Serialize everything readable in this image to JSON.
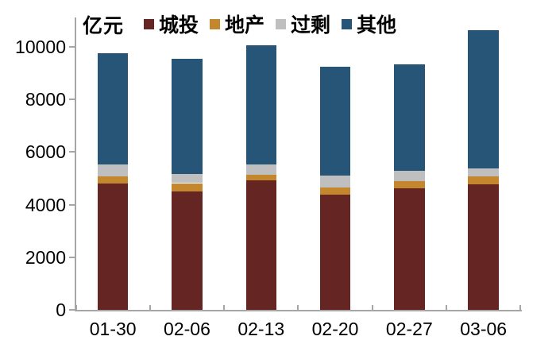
{
  "chart_data": {
    "type": "bar",
    "stacked": true,
    "unit_label": "亿元",
    "categories": [
      "01-30",
      "02-06",
      "02-13",
      "02-20",
      "02-27",
      "03-06"
    ],
    "series": [
      {
        "key": "chengtou",
        "name": "城投",
        "color": "#642523",
        "values": [
          4800,
          4510,
          4920,
          4380,
          4610,
          4770
        ]
      },
      {
        "key": "dichan",
        "name": "地产",
        "color": "#c5872d",
        "values": [
          270,
          310,
          220,
          280,
          280,
          300
        ]
      },
      {
        "key": "guosheng",
        "name": "过剩",
        "color": "#bfbfbf",
        "values": [
          470,
          350,
          400,
          440,
          400,
          300
        ]
      },
      {
        "key": "qita",
        "name": "其他",
        "color": "#275577",
        "values": [
          4210,
          4380,
          4510,
          4150,
          4060,
          5280
        ]
      }
    ],
    "totals": [
      9750,
      9550,
      10050,
      9250,
      9350,
      10650
    ],
    "ylim": [
      0,
      10000
    ],
    "ytick_interval": 2000,
    "ytick_labels": [
      "0",
      "2000",
      "4000",
      "6000",
      "8000",
      "10000"
    ],
    "legend_position": "top",
    "grid": false,
    "axis_color": "#a6a6a6",
    "text_color": "#000000",
    "background_color": "#ffffff"
  }
}
